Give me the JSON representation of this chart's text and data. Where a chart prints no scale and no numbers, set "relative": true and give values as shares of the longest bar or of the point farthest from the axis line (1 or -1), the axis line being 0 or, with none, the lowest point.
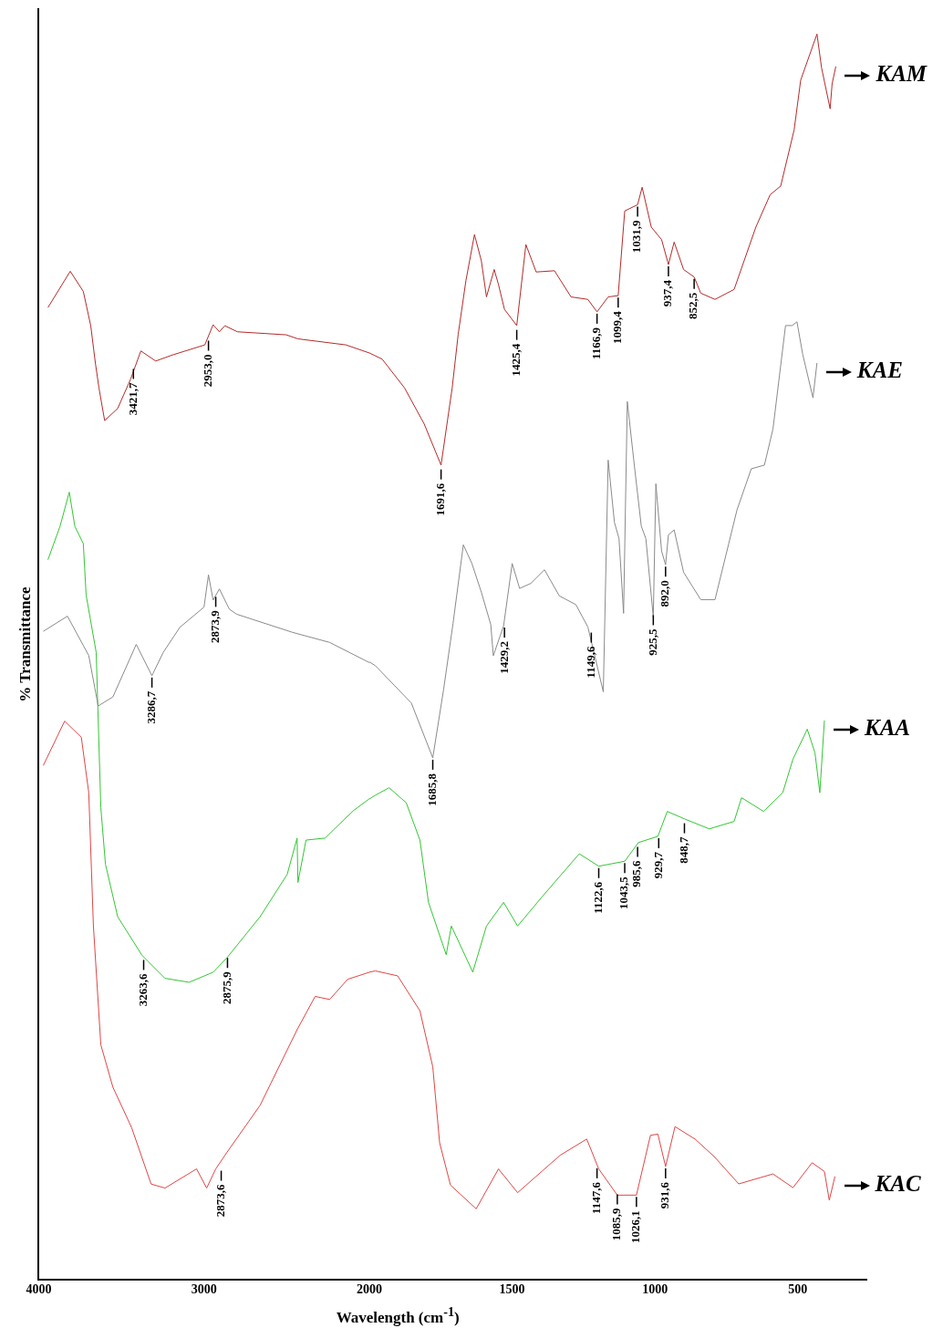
{
  "chart_data": [
    {
      "type": "line",
      "ylabel": "% Transmittance",
      "relative": true,
      "xlim": [
        4000,
        2000
      ],
      "xticks": [
        4000,
        3000
      ],
      "grid": false,
      "marker": "none",
      "line_style": "solid",
      "series": [
        {
          "color": "#b52a2a",
          "x": [
            3944,
            3809,
            3730,
            3685,
            3657,
            3635,
            3601,
            3522,
            3444,
            3382,
            3292,
            3191,
            2995,
            2945,
            2907,
            2874,
            2798,
            2503,
            2432,
            2142,
            2000
          ],
          "values": [
            0.964,
            1,
            0.98,
            0.946,
            0.909,
            0.884,
            0.852,
            0.864,
            0.893,
            0.921,
            0.911,
            0.917,
            0.927,
            0.947,
            0.94,
            0.946,
            0.94,
            0.937,
            0.933,
            0.927,
            0.919
          ]
        },
        {
          "color": "#8a8a8a",
          "x": [
            3972,
            3826,
            3697,
            3640,
            3551,
            3410,
            3315,
            3247,
            3146,
            3000,
            2973,
            2945,
            2907,
            2847,
            2803,
            2465,
            2240,
            2000
          ],
          "values": [
            0.643,
            0.658,
            0.619,
            0.569,
            0.578,
            0.63,
            0.599,
            0.622,
            0.647,
            0.667,
            0.699,
            0.674,
            0.685,
            0.665,
            0.66,
            0.642,
            0.632,
            0.612
          ]
        },
        {
          "color": "#33c633",
          "x": [
            3944,
            3871,
            3815,
            3781,
            3730,
            3713,
            3652,
            3624,
            3596,
            3522,
            3376,
            3236,
            3090,
            2945,
            2863,
            2661,
            2497,
            2437,
            2432,
            2383,
            2268,
            2098,
            2000
          ],
          "values": [
            0.714,
            0.747,
            0.781,
            0.747,
            0.73,
            0.679,
            0.622,
            0.468,
            0.412,
            0.36,
            0.322,
            0.299,
            0.295,
            0.305,
            0.319,
            0.36,
            0.402,
            0.438,
            0.394,
            0.436,
            0.438,
            0.465,
            0.477
          ]
        },
        {
          "color": "#e04545",
          "x": [
            3972,
            3843,
            3742,
            3697,
            3669,
            3624,
            3551,
            3438,
            3320,
            3236,
            3045,
            2984,
            2929,
            2863,
            2661,
            2437,
            2328,
            2240,
            2131,
            2000
          ],
          "values": [
            0.51,
            0.554,
            0.538,
            0.483,
            0.351,
            0.233,
            0.191,
            0.151,
            0.095,
            0.091,
            0.11,
            0.091,
            0.11,
            0.126,
            0.173,
            0.248,
            0.281,
            0.278,
            0.298,
            0.305
          ]
        }
      ],
      "annotations": [
        {
          "text": "3421,7",
          "x": 3427,
          "y": 0.905
        },
        {
          "text": "2953,0",
          "x": 2973,
          "y": 0.933
        },
        {
          "text": "3286,7",
          "x": 3315,
          "y": 0.599
        },
        {
          "text": "2873,9",
          "x": 2929,
          "y": 0.679
        },
        {
          "text": "3263,6",
          "x": 3365,
          "y": 0.319
        },
        {
          "text": "2875,9",
          "x": 2858,
          "y": 0.321
        },
        {
          "text": "2873,6",
          "x": 2896,
          "y": 0.11
        }
      ]
    },
    {
      "type": "line",
      "xlabel": "Wavelength (cm$^{-1}$)",
      "relative": true,
      "xlim": [
        2000,
        260
      ],
      "xticks": [
        2000,
        1500,
        1000,
        500
      ],
      "grid": false,
      "marker": "none",
      "line_style": "solid",
      "series": [
        {
          "name": "KAM",
          "color": "#b52a2a",
          "x": [
            2000,
            1955,
            1877,
            1808,
            1749,
            1710,
            1689,
            1662,
            1632,
            1608,
            1590,
            1563,
            1548,
            1527,
            1484,
            1452,
            1416,
            1352,
            1294,
            1235,
            1203,
            1164,
            1129,
            1106,
            1061,
            1045,
            1013,
            977,
            953,
            933,
            900,
            863,
            840,
            790,
            723,
            647,
            597,
            560,
            513,
            490,
            433,
            417,
            387,
            380,
            367
          ],
          "values": [
            0.744,
            0.739,
            0.716,
            0.687,
            0.654,
            0.716,
            0.759,
            0.802,
            0.839,
            0.818,
            0.789,
            0.811,
            0.799,
            0.779,
            0.766,
            0.831,
            0.809,
            0.81,
            0.789,
            0.787,
            0.777,
            0.789,
            0.79,
            0.858,
            0.863,
            0.877,
            0.845,
            0.835,
            0.815,
            0.833,
            0.811,
            0.805,
            0.792,
            0.787,
            0.795,
            0.845,
            0.871,
            0.878,
            0.923,
            0.963,
            1,
            0.973,
            0.94,
            0.96,
            0.974
          ]
        },
        {
          "name": "KAE",
          "color": "#8a8a8a",
          "x": [
            2000,
            1979,
            1853,
            1778,
            1740,
            1707,
            1671,
            1641,
            1608,
            1575,
            1566,
            1530,
            1500,
            1474,
            1435,
            1387,
            1335,
            1277,
            1235,
            1181,
            1164,
            1142,
            1126,
            1110,
            1097,
            1071,
            1048,
            1032,
            1006,
            997,
            977,
            963,
            953,
            933,
            900,
            840,
            790,
            713,
            663,
            617,
            587,
            543,
            520,
            503,
            483,
            447,
            433
          ],
          "values": [
            0.496,
            0.493,
            0.463,
            0.419,
            0.474,
            0.527,
            0.59,
            0.575,
            0.552,
            0.526,
            0.501,
            0.525,
            0.575,
            0.555,
            0.559,
            0.57,
            0.549,
            0.542,
            0.524,
            0.472,
            0.658,
            0.608,
            0.595,
            0.535,
            0.705,
            0.651,
            0.605,
            0.595,
            0.532,
            0.639,
            0.585,
            0.574,
            0.598,
            0.602,
            0.568,
            0.546,
            0.546,
            0.618,
            0.651,
            0.654,
            0.683,
            0.766,
            0.766,
            0.769,
            0.743,
            0.708,
            0.736
          ]
        },
        {
          "name": "KAA",
          "color": "#33c633",
          "x": [
            2000,
            1979,
            1931,
            1871,
            1823,
            1793,
            1731,
            1713,
            1638,
            1590,
            1530,
            1481,
            1397,
            1265,
            1197,
            1106,
            1058,
            990,
            957,
            897,
            810,
            723,
            697,
            620,
            553,
            517,
            467,
            440,
            423,
            407
          ],
          "values": [
            0.386,
            0.389,
            0.395,
            0.383,
            0.353,
            0.303,
            0.261,
            0.284,
            0.247,
            0.284,
            0.303,
            0.284,
            0.307,
            0.342,
            0.332,
            0.336,
            0.351,
            0.356,
            0.376,
            0.37,
            0.362,
            0.368,
            0.387,
            0.376,
            0.391,
            0.418,
            0.442,
            0.423,
            0.391,
            0.449
          ]
        },
        {
          "name": "KAC",
          "color": "#e04545",
          "x": [
            2000,
            1979,
            1901,
            1823,
            1778,
            1754,
            1716,
            1626,
            1548,
            1481,
            1332,
            1239,
            1197,
            1132,
            1065,
            1016,
            990,
            963,
            930,
            860,
            793,
            707,
            587,
            517,
            450,
            407,
            390,
            370
          ],
          "values": [
            0.247,
            0.248,
            0.244,
            0.216,
            0.171,
            0.11,
            0.076,
            0.057,
            0.089,
            0.07,
            0.1,
            0.113,
            0.089,
            0.068,
            0.068,
            0.116,
            0.117,
            0.091,
            0.123,
            0.113,
            0.099,
            0.077,
            0.085,
            0.074,
            0.094,
            0.087,
            0.064,
            0.083
          ]
        }
      ],
      "annotations": [
        {
          "text": "1691,6",
          "x": 1749,
          "y": 0.652
        },
        {
          "text": "1425,4",
          "x": 1484,
          "y": 0.764
        },
        {
          "text": "1166,9",
          "x": 1203,
          "y": 0.777
        },
        {
          "text": "1099,4",
          "x": 1129,
          "y": 0.79
        },
        {
          "text": "1031,9",
          "x": 1061,
          "y": 0.863
        },
        {
          "text": "937,4",
          "x": 953,
          "y": 0.815
        },
        {
          "text": "852,5",
          "x": 863,
          "y": 0.805
        },
        {
          "text": "1685,8",
          "x": 1778,
          "y": 0.419
        },
        {
          "text": "1429,2",
          "x": 1527,
          "y": 0.525
        },
        {
          "text": "1149,6",
          "x": 1223,
          "y": 0.521
        },
        {
          "text": "925,5",
          "x": 1006,
          "y": 0.535
        },
        {
          "text": "892,0",
          "x": 963,
          "y": 0.574
        },
        {
          "text": "1122,6",
          "x": 1197,
          "y": 0.332
        },
        {
          "text": "1043,5",
          "x": 1106,
          "y": 0.336
        },
        {
          "text": "985,6",
          "x": 1061,
          "y": 0.349
        },
        {
          "text": "929,7",
          "x": 987,
          "y": 0.356
        },
        {
          "text": "848,7",
          "x": 897,
          "y": 0.368
        },
        {
          "text": "1147,6",
          "x": 1203,
          "y": 0.091
        },
        {
          "text": "1085,9",
          "x": 1132,
          "y": 0.07
        },
        {
          "text": "1026,1",
          "x": 1065,
          "y": 0.068
        },
        {
          "text": "931,6",
          "x": 963,
          "y": 0.091
        }
      ]
    }
  ]
}
